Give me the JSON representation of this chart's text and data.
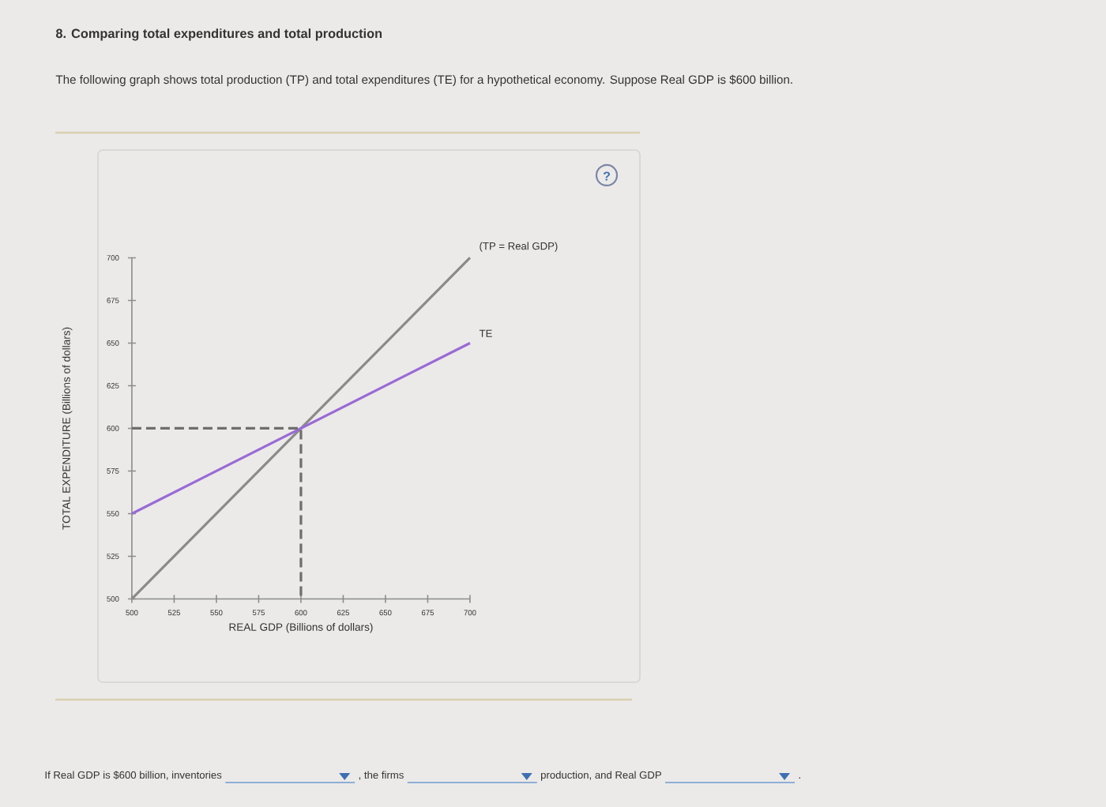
{
  "chart_data": {
    "type": "line",
    "title": "8. Comparing total expenditures and total production",
    "subtitle": "The following graph shows total production (TP) and total expenditures (TE) for a hypothetical economy. Suppose Real GDP is $600 billion.",
    "xlabel": "REAL GDP (Billions of dollars)",
    "ylabel": "TOTAL EXPENDITURE (Billions of dollars)",
    "xlim": [
      500,
      700
    ],
    "ylim": [
      500,
      700
    ],
    "xticks": [
      500,
      525,
      550,
      575,
      600,
      625,
      650,
      675,
      700
    ],
    "yticks": [
      500,
      525,
      550,
      575,
      600,
      625,
      650,
      675,
      700
    ],
    "series": [
      {
        "name": "(TP = Real GDP)",
        "color": "#8a8a8a",
        "x": [
          500,
          700
        ],
        "values": [
          500,
          700
        ]
      },
      {
        "name": "TE",
        "color": "#9a6ad6",
        "x": [
          500,
          700
        ],
        "values": [
          550,
          650
        ]
      },
      {
        "color": "#6e6e6e",
        "x": [
          500,
          600,
          600
        ],
        "values": [
          600,
          600,
          500
        ],
        "line_style": "dashed"
      }
    ],
    "annotations": [
      "?",
      "If Real GDP is $600 billion, inventories",
      ", the firms",
      "production, and Real GDP",
      "."
    ]
  }
}
